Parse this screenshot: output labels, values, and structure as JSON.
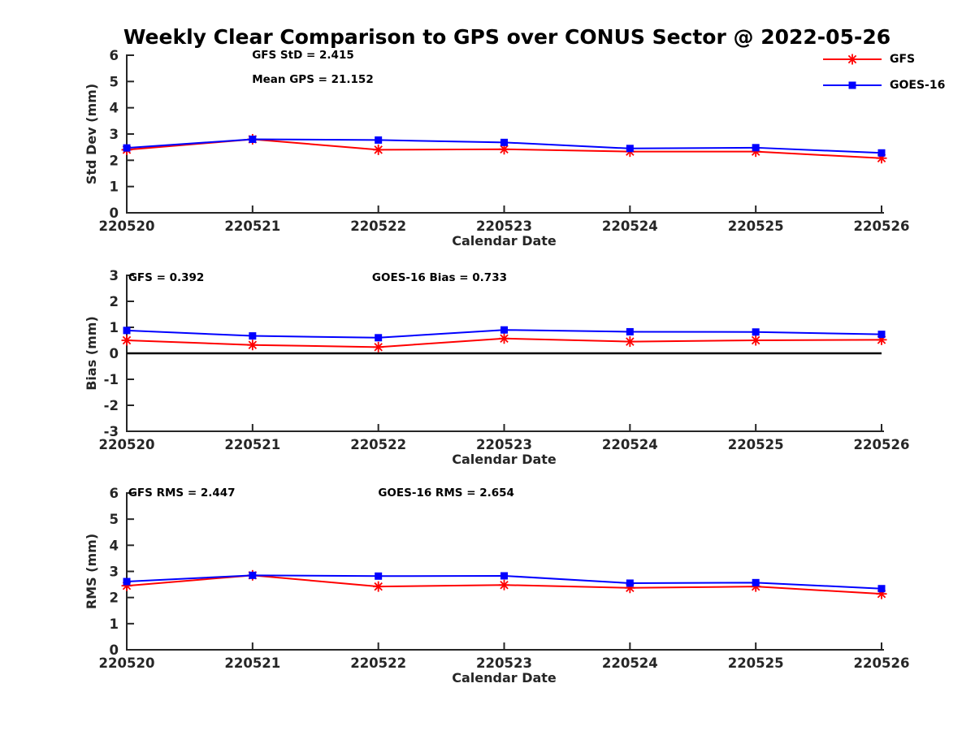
{
  "title": "Weekly Clear Comparison to GPS over CONUS Sector @ 2022-05-26",
  "legend": {
    "items": [
      {
        "label": "GFS",
        "color": "#ff0000",
        "marker": "asterisk"
      },
      {
        "label": "GOES-16",
        "color": "#0000ff",
        "marker": "square"
      }
    ],
    "position": "top-right-outside"
  },
  "colors": {
    "gfs": "#ff0000",
    "goes16": "#0000ff",
    "axis": "#262626",
    "annotation": "#000000",
    "zero_line": "#000000",
    "background": "#ffffff"
  },
  "chart_data": [
    {
      "type": "line",
      "name": "std-dev",
      "ylabel": "Std Dev (mm)",
      "xlabel": "Calendar Date",
      "ylim": [
        0,
        6
      ],
      "yticks": [
        0,
        1,
        2,
        3,
        4,
        5,
        6
      ],
      "grid": false,
      "categories": [
        "220520",
        "220521",
        "220522",
        "220523",
        "220524",
        "220525",
        "220526"
      ],
      "series": [
        {
          "name": "GFS",
          "color": "#ff0000",
          "marker": "asterisk",
          "values": [
            2.4,
            2.8,
            2.4,
            2.42,
            2.33,
            2.33,
            2.08
          ]
        },
        {
          "name": "GOES-16",
          "color": "#0000ff",
          "marker": "square",
          "values": [
            2.47,
            2.8,
            2.77,
            2.68,
            2.45,
            2.48,
            2.28
          ]
        }
      ],
      "annotations": [
        {
          "text": "GFS StD = 2.415",
          "fx": 0.166,
          "fy": 0.021
        },
        {
          "text": "Mean GPS = 21.152",
          "fx": 0.166,
          "fy": 0.175
        }
      ],
      "zero_line": false
    },
    {
      "type": "line",
      "name": "bias",
      "ylabel": "Bias (mm)",
      "xlabel": "Calendar Date",
      "ylim": [
        -3,
        3
      ],
      "yticks": [
        3,
        2,
        1,
        0,
        -1,
        -2,
        -3
      ],
      "grid": false,
      "categories": [
        "220520",
        "220521",
        "220522",
        "220523",
        "220524",
        "220525",
        "220526"
      ],
      "series": [
        {
          "name": "GFS",
          "color": "#ff0000",
          "marker": "asterisk",
          "values": [
            0.5,
            0.32,
            0.24,
            0.57,
            0.45,
            0.5,
            0.52
          ]
        },
        {
          "name": "GOES-16",
          "color": "#0000ff",
          "marker": "square",
          "values": [
            0.88,
            0.67,
            0.6,
            0.9,
            0.83,
            0.82,
            0.73
          ]
        }
      ],
      "annotations": [
        {
          "text": "GFS = 0.392",
          "fx": 0.002,
          "fy": 0.036
        },
        {
          "text": "GOES-16 Bias  = 0.733",
          "fx": 0.325,
          "fy": 0.036
        }
      ],
      "zero_line": true
    },
    {
      "type": "line",
      "name": "rms",
      "ylabel": "RMS (mm)",
      "xlabel": "Calendar Date",
      "ylim": [
        0,
        6
      ],
      "yticks": [
        0,
        1,
        2,
        3,
        4,
        5,
        6
      ],
      "grid": false,
      "categories": [
        "220520",
        "220521",
        "220522",
        "220523",
        "220524",
        "220525",
        "220526"
      ],
      "series": [
        {
          "name": "GFS",
          "color": "#ff0000",
          "marker": "asterisk",
          "values": [
            2.45,
            2.85,
            2.42,
            2.48,
            2.37,
            2.42,
            2.14
          ]
        },
        {
          "name": "GOES-16",
          "color": "#0000ff",
          "marker": "square",
          "values": [
            2.61,
            2.85,
            2.82,
            2.83,
            2.55,
            2.57,
            2.34
          ]
        }
      ],
      "annotations": [
        {
          "text": "GFS RMS = 2.447",
          "fx": 0.002,
          "fy": 0.021
        },
        {
          "text": "GOES-16 RMS = 2.654",
          "fx": 0.333,
          "fy": 0.021
        }
      ],
      "zero_line": false
    }
  ]
}
